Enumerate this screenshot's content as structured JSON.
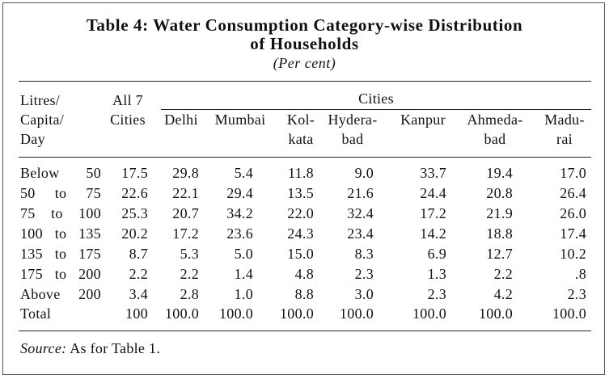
{
  "title_line1": "Table 4: Water Consumption Category-wise Distribution",
  "title_line2": "of Households",
  "subtitle": "(Per cent)",
  "header": {
    "stub": [
      "Litres/",
      "Capita/",
      "Day"
    ],
    "all": [
      "All 7",
      "Cities"
    ],
    "cities_label": "Cities",
    "cities": [
      {
        "l1": "Delhi",
        "l2": ""
      },
      {
        "l1": "Mumbai",
        "l2": ""
      },
      {
        "l1": "Kol-",
        "l2": "kata"
      },
      {
        "l1": "Hydera-",
        "l2": "bad"
      },
      {
        "l1": "Kanpur",
        "l2": ""
      },
      {
        "l1": "Ahmeda-",
        "l2": "bad"
      },
      {
        "l1": "Madu-",
        "l2": "rai"
      }
    ]
  },
  "rows": [
    {
      "label": "Below 50",
      "values": [
        "17.5",
        "29.8",
        "5.4",
        "11.8",
        "9.0",
        "33.7",
        "19.4",
        "17.0"
      ]
    },
    {
      "label": "50 to 75",
      "values": [
        "22.6",
        "22.1",
        "29.4",
        "13.5",
        "21.6",
        "24.4",
        "20.8",
        "26.4"
      ]
    },
    {
      "label": "75 to 100",
      "values": [
        "25.3",
        "20.7",
        "34.2",
        "22.0",
        "32.4",
        "17.2",
        "21.9",
        "26.0"
      ]
    },
    {
      "label": "100 to 135",
      "values": [
        "20.2",
        "17.2",
        "23.6",
        "24.3",
        "23.4",
        "14.2",
        "18.8",
        "17.4"
      ]
    },
    {
      "label": "135 to 175",
      "values": [
        "8.7",
        "5.3",
        "5.0",
        "15.0",
        "8.3",
        "6.9",
        "12.7",
        "10.2"
      ]
    },
    {
      "label": "175 to 200",
      "values": [
        "2.2",
        "2.2",
        "1.4",
        "4.8",
        "2.3",
        "1.3",
        "2.2",
        ".8"
      ]
    },
    {
      "label": "Above 200",
      "values": [
        "3.4",
        "2.8",
        "1.0",
        "8.8",
        "3.0",
        "2.3",
        "4.2",
        "2.3"
      ]
    },
    {
      "label": "Total",
      "values": [
        "100",
        "100.0",
        "100.0",
        "100.0",
        "100.0",
        "100.0",
        "100.0",
        "100.0"
      ]
    }
  ],
  "source_label": "Source:",
  "source_text": "As for Table 1."
}
